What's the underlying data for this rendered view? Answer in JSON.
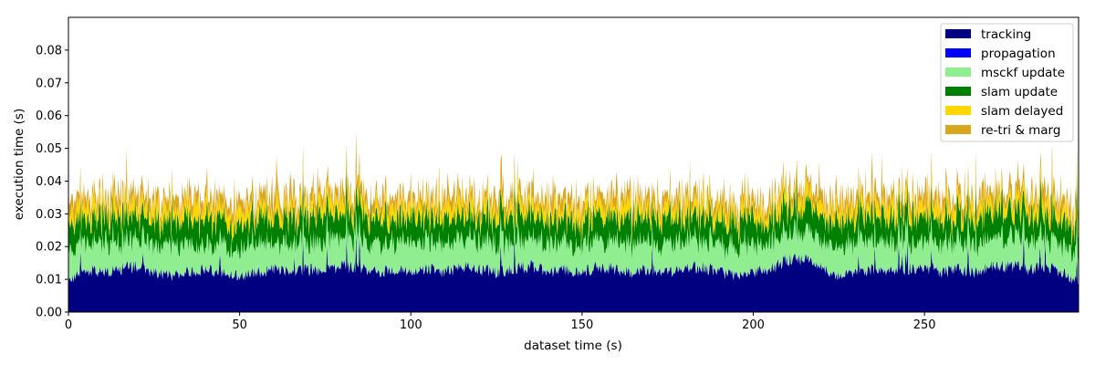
{
  "chart_data": {
    "type": "area",
    "stacked": true,
    "xlabel": "dataset time (s)",
    "ylabel": "execution time (s)",
    "xlim": [
      0,
      295
    ],
    "ylim": [
      0,
      0.09
    ],
    "xticks": [
      0,
      50,
      100,
      150,
      200,
      250
    ],
    "xtick_labels": [
      "0",
      "50",
      "100",
      "150",
      "200",
      "250"
    ],
    "yticks": [
      0.0,
      0.01,
      0.02,
      0.03,
      0.04,
      0.05,
      0.06,
      0.07,
      0.08
    ],
    "ytick_labels": [
      "0.00",
      "0.01",
      "0.02",
      "0.03",
      "0.04",
      "0.05",
      "0.06",
      "0.07",
      "0.08"
    ],
    "grid": false,
    "legend_position": "top-right",
    "series": [
      {
        "name": "tracking",
        "color": "#000080",
        "mean": 0.0125
      },
      {
        "name": "propagation",
        "color": "#0000ff",
        "mean": 0.0002
      },
      {
        "name": "msckf update",
        "color": "#90ee90",
        "mean": 0.0075
      },
      {
        "name": "slam update",
        "color": "#008000",
        "mean": 0.0065
      },
      {
        "name": "slam delayed",
        "color": "#ffd700",
        "mean": 0.003
      },
      {
        "name": "re-tri & marg",
        "color": "#daa520",
        "mean": 0.003
      }
    ],
    "x": [
      0,
      5,
      10,
      15,
      20,
      25,
      30,
      35,
      40,
      45,
      50,
      55,
      60,
      65,
      70,
      75,
      80,
      85,
      90,
      95,
      100,
      105,
      110,
      115,
      120,
      125,
      130,
      135,
      140,
      145,
      150,
      155,
      160,
      165,
      170,
      175,
      180,
      185,
      190,
      195,
      200,
      205,
      210,
      215,
      220,
      225,
      230,
      235,
      240,
      245,
      250,
      255,
      260,
      265,
      270,
      275,
      280,
      285,
      290,
      295
    ],
    "totals": [
      0.04,
      0.043,
      0.036,
      0.038,
      0.04,
      0.032,
      0.036,
      0.035,
      0.034,
      0.033,
      0.034,
      0.038,
      0.036,
      0.035,
      0.036,
      0.034,
      0.038,
      0.036,
      0.04,
      0.036,
      0.033,
      0.035,
      0.034,
      0.035,
      0.036,
      0.035,
      0.036,
      0.037,
      0.035,
      0.036,
      0.035,
      0.034,
      0.036,
      0.035,
      0.036,
      0.033,
      0.035,
      0.036,
      0.034,
      0.037,
      0.034,
      0.033,
      0.036,
      0.035,
      0.033,
      0.031,
      0.034,
      0.036,
      0.035,
      0.036,
      0.037,
      0.036,
      0.034,
      0.035,
      0.036,
      0.04,
      0.036,
      0.037,
      0.036,
      0.033
    ],
    "tracking_values": [
      0.009,
      0.013,
      0.012,
      0.013,
      0.014,
      0.012,
      0.011,
      0.012,
      0.013,
      0.012,
      0.011,
      0.012,
      0.013,
      0.012,
      0.013,
      0.012,
      0.014,
      0.013,
      0.012,
      0.013,
      0.012,
      0.013,
      0.012,
      0.014,
      0.013,
      0.012,
      0.013,
      0.014,
      0.012,
      0.013,
      0.012,
      0.014,
      0.013,
      0.012,
      0.013,
      0.012,
      0.013,
      0.014,
      0.012,
      0.011,
      0.012,
      0.013,
      0.016,
      0.016,
      0.013,
      0.011,
      0.012,
      0.013,
      0.012,
      0.013,
      0.014,
      0.012,
      0.013,
      0.012,
      0.014,
      0.014,
      0.013,
      0.014,
      0.012,
      0.009
    ]
  }
}
